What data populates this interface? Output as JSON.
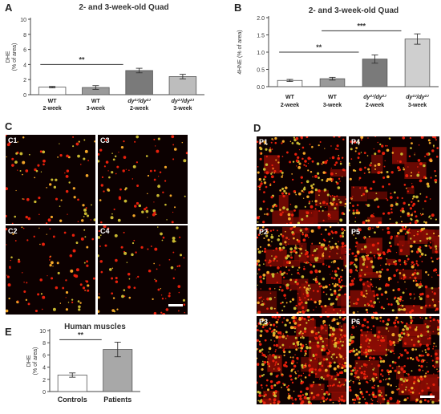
{
  "panels": {
    "A": "A",
    "B": "B",
    "C": "C",
    "D": "D",
    "E": "E"
  },
  "chart_data": [
    {
      "id": "A",
      "type": "bar",
      "title": "2- and 3-week-old Quad",
      "ylabel": "DHE\n(% of area)",
      "ylim": [
        0,
        10
      ],
      "yticks": [
        0,
        2,
        4,
        6,
        8,
        10
      ],
      "categories": [
        [
          "WT",
          "2-week"
        ],
        [
          "WT",
          "3-week"
        ],
        [
          "dy2J/dy2J",
          "2-week"
        ],
        [
          "dy2J/dy2J",
          "3-week"
        ]
      ],
      "values": [
        1.0,
        0.95,
        3.2,
        2.4
      ],
      "errors": [
        0.1,
        0.25,
        0.3,
        0.3
      ],
      "bar_colors": [
        "#ffffff",
        "#9a9a9a",
        "#7a7a7a",
        "#bdbdbd"
      ],
      "significance": [
        {
          "from": 0,
          "to": 2,
          "y": 4.0,
          "label": "**"
        }
      ]
    },
    {
      "id": "B",
      "type": "bar",
      "title": "2- and 3-week-old Quad",
      "ylabel": "4HNE (% of area)",
      "ylim": [
        0,
        2.0
      ],
      "yticks": [
        0.0,
        0.5,
        1.0,
        1.5,
        2.0
      ],
      "categories": [
        [
          "WT",
          "2-week"
        ],
        [
          "WT",
          "3-week"
        ],
        [
          "dy2J/dy2J",
          "2-week"
        ],
        [
          "dy2J/dy2J",
          "3-week"
        ]
      ],
      "values": [
        0.18,
        0.23,
        0.8,
        1.38
      ],
      "errors": [
        0.03,
        0.04,
        0.12,
        0.15
      ],
      "bar_colors": [
        "#ffffff",
        "#9a9a9a",
        "#7a7a7a",
        "#cfcfcf"
      ],
      "significance": [
        {
          "from": 0,
          "to": 2,
          "y": 1.0,
          "label": "**"
        },
        {
          "from": 1,
          "to": 3,
          "y": 1.62,
          "label": "***"
        }
      ]
    },
    {
      "id": "E",
      "type": "bar",
      "title": "Human muscles",
      "ylabel": "DHE\n(% of area)",
      "ylim": [
        0,
        10
      ],
      "yticks": [
        0,
        2,
        4,
        6,
        8,
        10
      ],
      "categories": [
        [
          "Controls"
        ],
        [
          "Patients"
        ]
      ],
      "values": [
        2.7,
        6.9
      ],
      "errors": [
        0.35,
        1.2
      ],
      "bar_colors": [
        "#ffffff",
        "#a8a8a8"
      ],
      "significance": [
        {
          "from": 0,
          "to": 1,
          "y": 8.5,
          "label": "**"
        }
      ]
    }
  ],
  "micrographs": {
    "C": [
      "C1",
      "C3",
      "C2",
      "C4"
    ],
    "D": [
      "P1",
      "P4",
      "P2",
      "P5",
      "P3",
      "P6"
    ]
  },
  "colors": {
    "stain_red": "#e01a0a",
    "stain_orange": "#f0a020",
    "background": "#0c0101"
  }
}
